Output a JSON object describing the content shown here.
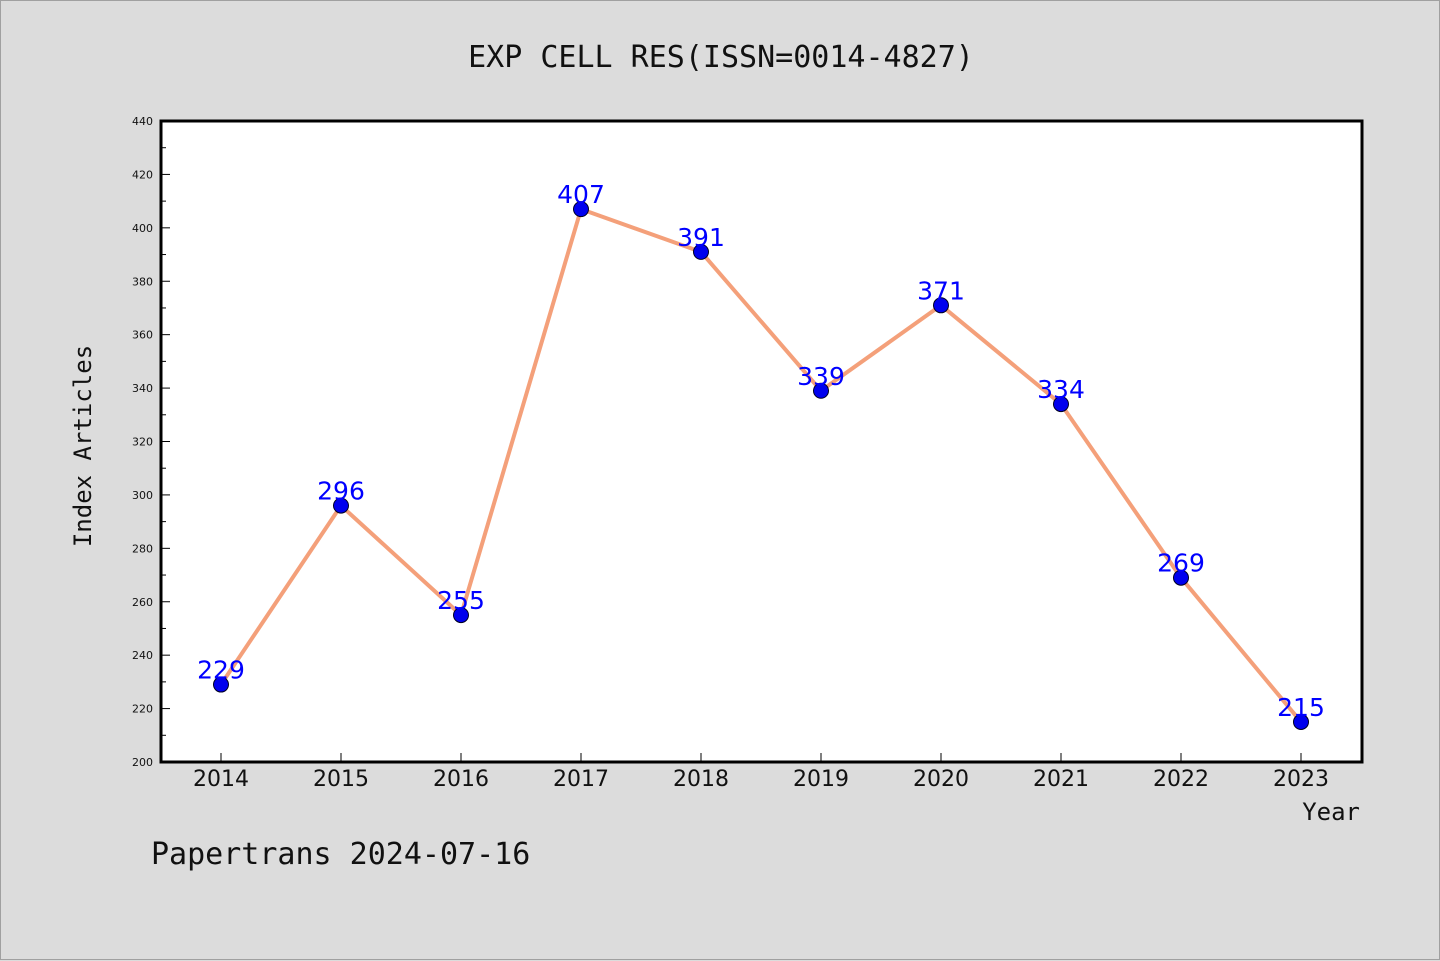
{
  "chart_data": {
    "type": "line",
    "title": "EXP CELL RES(ISSN=0014-4827)",
    "xlabel": "Year",
    "ylabel": "Index Articles",
    "x": [
      "2014",
      "2015",
      "2016",
      "2017",
      "2018",
      "2019",
      "2020",
      "2021",
      "2022",
      "2023"
    ],
    "series": [
      {
        "values": [
          229,
          296,
          255,
          407,
          391,
          339,
          371,
          334,
          269,
          215
        ],
        "labels": [
          "229",
          "296",
          "255",
          "407",
          "391",
          "339",
          "371",
          "334",
          "269",
          "215"
        ],
        "line_color": "#f4a07a",
        "marker_color": "#0000ee"
      }
    ],
    "ylim": [
      200,
      440
    ],
    "yticks": [
      "200",
      "220",
      "240",
      "260",
      "280",
      "300",
      "320",
      "340",
      "360",
      "380",
      "400",
      "420",
      "440"
    ],
    "grid": false,
    "legend": "none"
  },
  "footer": {
    "text": "Papertrans 2024-07-16"
  },
  "colors": {
    "background": "#dcdcdc",
    "plot_area": "#ffffff",
    "data_label": "#0000ff"
  }
}
